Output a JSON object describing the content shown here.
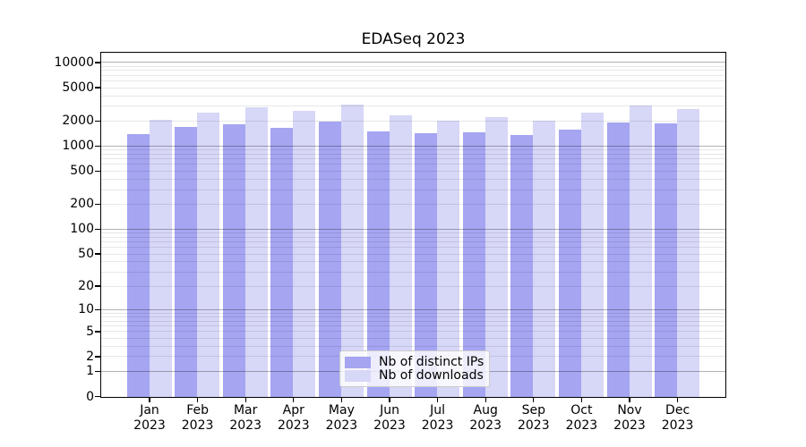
{
  "colors": {
    "distinct_ips": "#a5a5f2",
    "downloads": "#d7d7f7",
    "grid_major": "rgba(0,0,0,0.30)",
    "grid_minor": "rgba(0,0,0,0.095)",
    "axis": "#000000",
    "text": "#000000",
    "legend_border": "#cccccc"
  },
  "chart_data": {
    "type": "bar",
    "title": "EDASeq 2023",
    "categories": [
      "Jan 2023",
      "Feb 2023",
      "Mar 2023",
      "Apr 2023",
      "May 2023",
      "Jun 2023",
      "Jul 2023",
      "Aug 2023",
      "Sep 2023",
      "Oct 2023",
      "Nov 2023",
      "Dec 2023"
    ],
    "series": [
      {
        "name": "Nb of distinct IPs",
        "color": "#a5a5f2",
        "values": [
          1420,
          1700,
          1840,
          1680,
          1980,
          1520,
          1450,
          1480,
          1360,
          1600,
          1920,
          1880
        ]
      },
      {
        "name": "Nb of downloads",
        "color": "#d7d7f7",
        "values": [
          2090,
          2510,
          2940,
          2660,
          3160,
          2330,
          2010,
          2270,
          2010,
          2530,
          3120,
          2790
        ]
      }
    ],
    "xlabel": "",
    "ylabel": "",
    "y_scale": "log1p",
    "y_ticks": [
      0,
      1,
      2,
      5,
      10,
      20,
      50,
      100,
      200,
      500,
      1000,
      2000,
      5000,
      10000
    ],
    "ylim": [
      0,
      12900
    ],
    "grid": true,
    "grid_major_at": [
      1,
      10,
      100,
      1000,
      10000
    ],
    "legend_position": "lower center",
    "legend_items": [
      "Nb of distinct IPs",
      "Nb of downloads"
    ]
  }
}
